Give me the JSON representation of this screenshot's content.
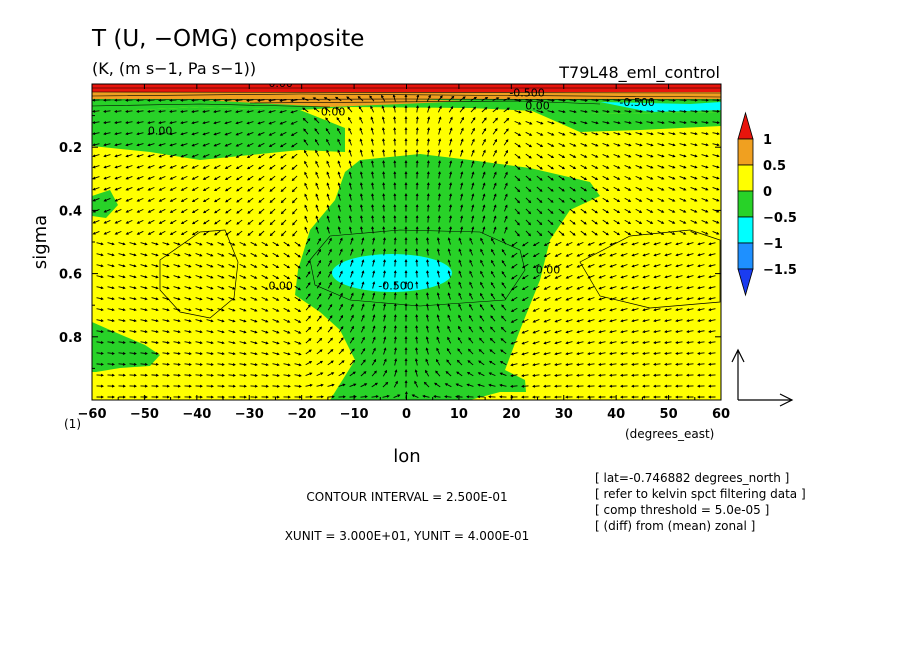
{
  "chart_data": {
    "type": "heatmap",
    "title": "T (U, −OMG) composite",
    "subtitle": "(K, (m s−1, Pa s−1))",
    "experiment": "T79L48_eml_control",
    "xlabel": "lon",
    "ylabel": "sigma",
    "x_unit_label": "(degrees_east)",
    "panel_label": "(1)",
    "xlim": [
      -60,
      60
    ],
    "ylim": [
      1.0,
      0.0
    ],
    "x_ticks": [
      "−60",
      "−50",
      "−40",
      "−30",
      "−20",
      "−10",
      "0",
      "10",
      "20",
      "30",
      "40",
      "50",
      "60"
    ],
    "x_tick_values": [
      -60,
      -50,
      -40,
      -30,
      -20,
      -10,
      0,
      10,
      20,
      30,
      40,
      50,
      60
    ],
    "y_ticks": [
      "0.2",
      "0.4",
      "0.6",
      "0.8"
    ],
    "y_tick_values": [
      0.2,
      0.4,
      0.6,
      0.8
    ],
    "colorbar": {
      "labels": [
        "1",
        "0.5",
        "0",
        "−0.5",
        "−1",
        "−1.5"
      ],
      "colors": [
        "#e8140c",
        "#f0a020",
        "#ffff00",
        "#28d228",
        "#00ffff",
        "#1e90ff",
        "#1a3cf0"
      ]
    },
    "contour_labels": [
      {
        "text": "0.00",
        "lon": -47,
        "sigma": 0.16
      },
      {
        "text": "0.00",
        "lon": -14,
        "sigma": 0.1
      },
      {
        "text": "0.00",
        "lon": 25,
        "sigma": 0.08
      },
      {
        "text": "0.00",
        "lon": -24,
        "sigma": 0.65
      },
      {
        "text": "0.00",
        "lon": 27,
        "sigma": 0.6
      },
      {
        "text": "-0.500",
        "lon": -2,
        "sigma": 0.65
      },
      {
        "text": "0.00",
        "lon": -24,
        "sigma": 0.01
      },
      {
        "text": "-0.500",
        "lon": 23,
        "sigma": 0.04
      },
      {
        "text": "-0.500",
        "lon": 44,
        "sigma": 0.07
      }
    ],
    "contour_interval": "CONTOUR INTERVAL = 2.500E-01",
    "vector_units": "XUNIT = 3.000E+01, YUNIT = 4.000E-01",
    "notes": [
      "[ lat=-0.746882 degrees_north ]",
      "[ refer to kelvin spct filtering data ]",
      "[ comp threshold = 5.0e-05 ]",
      "[ (diff) from (mean) zonal ]"
    ]
  }
}
